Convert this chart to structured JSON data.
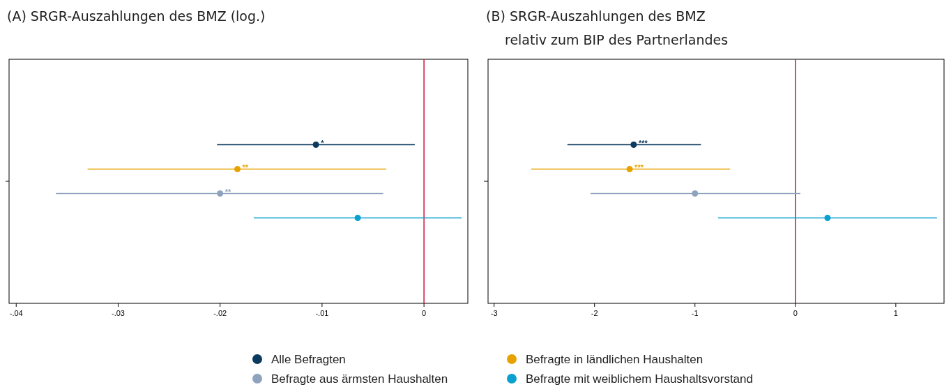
{
  "chart_data": [
    {
      "type": "scatter",
      "orientation": "horizontal",
      "title": "(A) SRGR-Auszahlungen des BMZ (log.)",
      "categories": [
        null
      ],
      "series": [
        {
          "name": "Alle Befragten",
          "color": "#0b3a5e",
          "values": [
            -0.0106
          ],
          "errors": [
            [
              -0.0203,
              -0.0009
            ]
          ]
        },
        {
          "name": "Befragte in ländlichen Haushalten",
          "color": "#e8a200",
          "values": [
            -0.0183
          ],
          "errors": [
            [
              -0.033,
              -0.0037
            ]
          ]
        },
        {
          "name": "Befragte aus ärmsten Haushalten",
          "color": "#8fa3bf",
          "values": [
            -0.02
          ],
          "errors": [
            [
              -0.0361,
              -0.004
            ]
          ]
        },
        {
          "name": "Befragte mit weiblichem Haushaltsvorstand",
          "color": "#0aa0cf",
          "values": [
            -0.0065
          ],
          "errors": [
            [
              -0.0167,
              0.0037
            ]
          ]
        }
      ],
      "xlim": [
        -0.0407,
        0.0043
      ],
      "xticks": [
        {
          "value": -0.04,
          "label": "-.04"
        },
        {
          "value": -0.03,
          "label": "-.03"
        },
        {
          "value": -0.02,
          "label": "-.02"
        },
        {
          "value": -0.01,
          "label": "-.01"
        },
        0
      ],
      "ref_lines": [
        {
          "axis": "x",
          "value": 0,
          "color": "#d0103a"
        }
      ],
      "annotations": [
        {
          "text": "*",
          "x": -0.0106
        },
        {
          "text": "**",
          "x": -0.0183
        },
        {
          "text": "**",
          "x": -0.02
        }
      ],
      "marker": "circle",
      "grid": false,
      "legend": "bottom"
    },
    {
      "type": "scatter",
      "orientation": "horizontal",
      "title": "(B) SRGR-Auszahlungen des BMZ",
      "subtitle": "relativ zum BIP des Partnerlandes",
      "categories": [
        null
      ],
      "series": [
        {
          "color": "#0b3a5e",
          "values": [
            -1.61
          ],
          "errors": [
            [
              -2.27,
              -0.94
            ]
          ]
        },
        {
          "color": "#e8a200",
          "values": [
            -1.65
          ],
          "errors": [
            [
              -2.63,
              -0.65
            ]
          ]
        },
        {
          "color": "#8fa3bf",
          "values": [
            -1.0
          ],
          "errors": [
            [
              -2.04,
              0.05
            ]
          ]
        },
        {
          "color": "#0aa0cf",
          "values": [
            0.32
          ],
          "errors": [
            [
              -0.77,
              1.41
            ]
          ]
        }
      ],
      "xlim": [
        -3.06,
        1.48
      ],
      "xticks": [
        -3,
        -2,
        -1,
        0,
        1
      ],
      "ref_lines": [
        {
          "axis": "x",
          "value": 0,
          "color": "#d0103a"
        }
      ],
      "annotations": [
        {
          "text": "***",
          "x": -1.61
        },
        {
          "text": "***",
          "x": -1.65
        }
      ],
      "marker": "circle",
      "grid": false
    }
  ]
}
